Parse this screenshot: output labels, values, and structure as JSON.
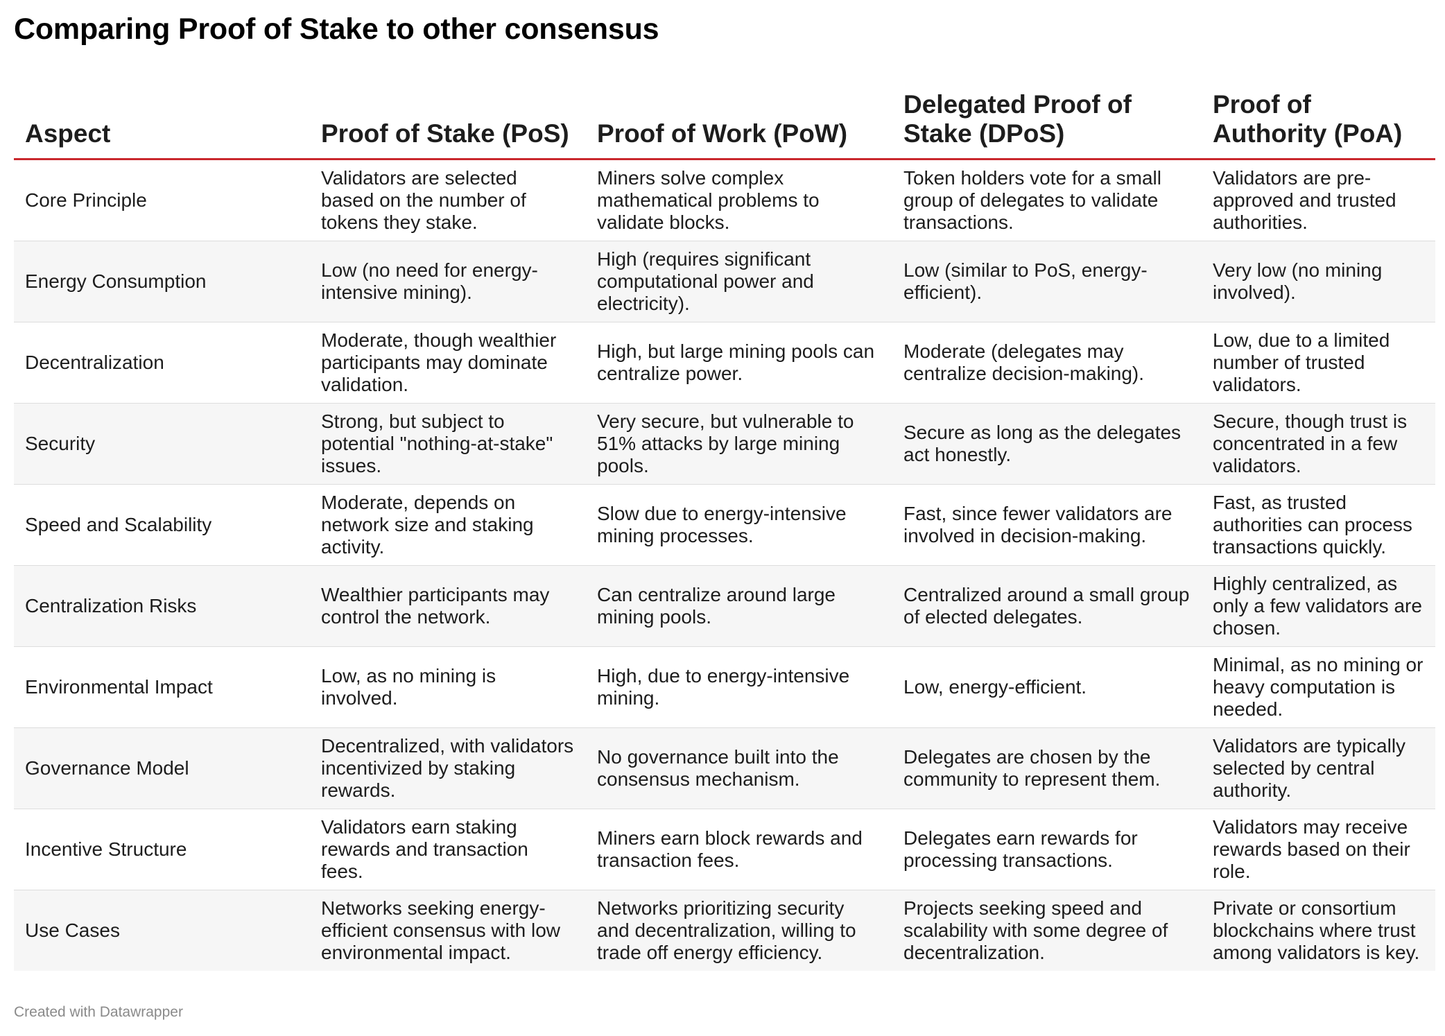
{
  "chart_data": {
    "type": "table",
    "title": "Comparing Proof of Stake to other consensus",
    "columns": [
      "Aspect",
      "Proof of Stake (PoS)",
      "Proof of Work (PoW)",
      "Delegated Proof of Stake (DPoS)",
      "Proof of Authority (PoA)"
    ],
    "rows": [
      [
        "Core Principle",
        "Validators are selected based on the number of tokens they stake.",
        "Miners solve complex mathematical problems to validate blocks.",
        "Token holders vote for a small group of delegates to validate transactions.",
        "Validators are pre-approved and trusted authorities."
      ],
      [
        "Energy Consumption",
        "Low (no need for energy-intensive mining).",
        "High (requires significant computational power and electricity).",
        "Low (similar to PoS, energy-efficient).",
        "Very low (no mining involved)."
      ],
      [
        "Decentralization",
        "Moderate, though wealthier participants may dominate validation.",
        "High, but large mining pools can centralize power.",
        "Moderate (delegates may centralize decision-making).",
        "Low, due to a limited number of trusted validators."
      ],
      [
        "Security",
        "Strong, but subject to potential \"nothing-at-stake\" issues.",
        "Very secure, but vulnerable to 51% attacks by large mining pools.",
        "Secure as long as the delegates act honestly.",
        "Secure, though trust is concentrated in a few validators."
      ],
      [
        "Speed and Scalability",
        "Moderate, depends on network size and staking activity.",
        "Slow due to energy-intensive mining processes.",
        "Fast, since fewer validators are involved in decision-making.",
        "Fast, as trusted authorities can process transactions quickly."
      ],
      [
        "Centralization Risks",
        "Wealthier participants may control the network.",
        "Can centralize around large mining pools.",
        "Centralized around a small group of elected delegates.",
        "Highly centralized, as only a few validators are chosen."
      ],
      [
        "Environmental Impact",
        "Low, as no mining is involved.",
        "High, due to energy-intensive mining.",
        "Low, energy-efficient.",
        "Minimal, as no mining or heavy computation is needed."
      ],
      [
        "Governance Model",
        "Decentralized, with validators incentivized by staking rewards.",
        "No governance built into the consensus mechanism.",
        "Delegates are chosen by the community to represent them.",
        "Validators are typically selected by central authority."
      ],
      [
        "Incentive Structure",
        "Validators earn staking rewards and transaction fees.",
        "Miners earn block rewards and transaction fees.",
        "Delegates earn rewards for processing transactions.",
        "Validators may receive rewards based on their role."
      ],
      [
        "Use Cases",
        "Networks seeking energy-efficient consensus with low environmental impact.",
        "Networks prioritizing security and decentralization, willing to trade off energy efficiency.",
        "Projects seeking speed and scalability with some degree of decentralization.",
        "Private or consortium blockchains where trust among validators is key."
      ]
    ],
    "colors": {
      "header_rule": "#c9282d",
      "row_alt": "#f6f6f6",
      "footer_text": "#8a8a8a"
    }
  },
  "footer": {
    "credit": "Created with Datawrapper"
  }
}
